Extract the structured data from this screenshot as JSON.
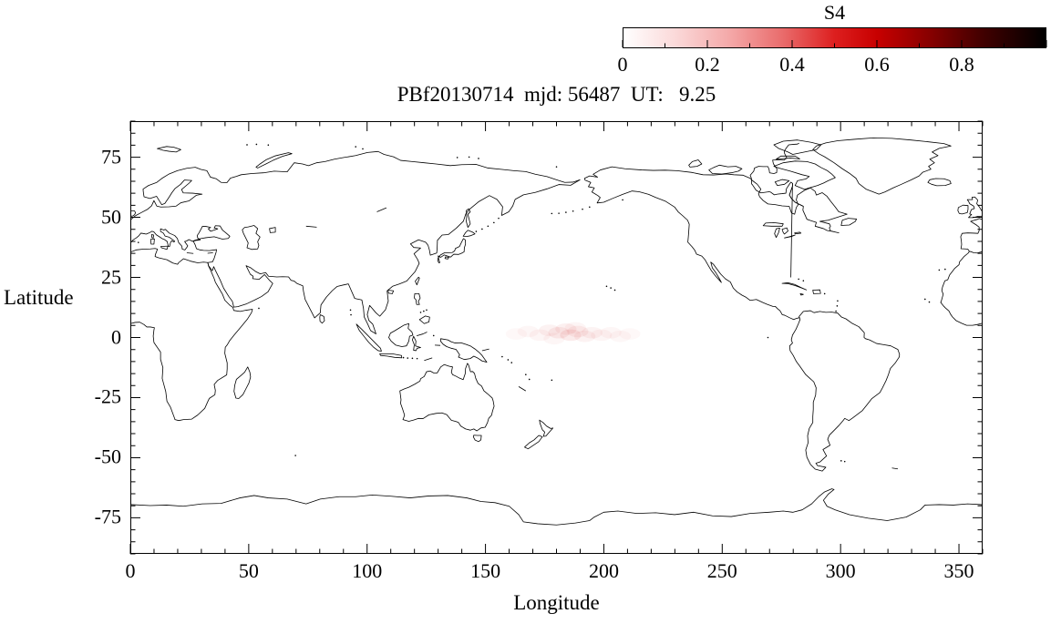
{
  "figure": {
    "title": "PBf20130714  mjd: 56487  UT:   9.25"
  },
  "colorbar": {
    "label": "S4",
    "min": 0,
    "max": 1,
    "tick_values": [
      0,
      0.2,
      0.4,
      0.6,
      0.8
    ],
    "tick_labels": [
      "0",
      "0.2",
      "0.4",
      "0.6",
      "0.8"
    ],
    "minor_tick_step": 0.1,
    "gradient_stops": [
      {
        "v": 0,
        "c": "#ffffff"
      },
      {
        "v": 0.12,
        "c": "#fbdada"
      },
      {
        "v": 0.25,
        "c": "#f4a9a9"
      },
      {
        "v": 0.38,
        "c": "#e96a6a"
      },
      {
        "v": 0.5,
        "c": "#dd1f1f"
      },
      {
        "v": 0.6,
        "c": "#c80000"
      },
      {
        "v": 0.72,
        "c": "#8a0000"
      },
      {
        "v": 0.85,
        "c": "#420000"
      },
      {
        "v": 1,
        "c": "#000000"
      }
    ]
  },
  "axes": {
    "xlabel": "Longitude",
    "ylabel": "Latitude",
    "x_range": [
      0,
      360
    ],
    "y_range": [
      -90,
      90
    ],
    "x_major_ticks": [
      0,
      50,
      100,
      150,
      200,
      250,
      300,
      350
    ],
    "x_minor_step": 10,
    "y_major_ticks": [
      75,
      50,
      25,
      0,
      -25,
      -50,
      -75
    ],
    "y_minor_step": 5
  },
  "chart_data": {
    "type": "scatter",
    "title": "PBf20130714  mjd: 56487  UT:   9.25",
    "date": "20130714",
    "mjd": 56487,
    "ut_hours": 9.25,
    "xlabel": "Longitude",
    "ylabel": "Latitude",
    "xlim": [
      0,
      360
    ],
    "ylim": [
      -90,
      90
    ],
    "grid": false,
    "basemap": "world coastlines, equirectangular projection, longitude 0-360E",
    "colorbar": {
      "label": "S4",
      "range": [
        0,
        1
      ],
      "position": "top-right"
    },
    "series": [
      {
        "name": "S4 scintillation (faint low-S4 cluster over equatorial Pacific)",
        "points": [
          {
            "lon": 163,
            "lat": 1.5,
            "s4": 0.05
          },
          {
            "lon": 168,
            "lat": 2.5,
            "s4": 0.07
          },
          {
            "lon": 173,
            "lat": 1.0,
            "s4": 0.08
          },
          {
            "lon": 177,
            "lat": 3.0,
            "s4": 0.1
          },
          {
            "lon": 179,
            "lat": -0.5,
            "s4": 0.07
          },
          {
            "lon": 181,
            "lat": 2.0,
            "s4": 0.13
          },
          {
            "lon": 184,
            "lat": 3.5,
            "s4": 0.11
          },
          {
            "lon": 186,
            "lat": 1.0,
            "s4": 0.15
          },
          {
            "lon": 188,
            "lat": 4.0,
            "s4": 0.08
          },
          {
            "lon": 189,
            "lat": 2.5,
            "s4": 0.12
          },
          {
            "lon": 192,
            "lat": 0.5,
            "s4": 0.1
          },
          {
            "lon": 195,
            "lat": 2.0,
            "s4": 0.09
          },
          {
            "lon": 199,
            "lat": 1.0,
            "s4": 0.08
          },
          {
            "lon": 203,
            "lat": 2.0,
            "s4": 0.07
          },
          {
            "lon": 207,
            "lat": 0.5,
            "s4": 0.06
          },
          {
            "lon": 211,
            "lat": 1.5,
            "s4": 0.05
          }
        ]
      }
    ]
  }
}
